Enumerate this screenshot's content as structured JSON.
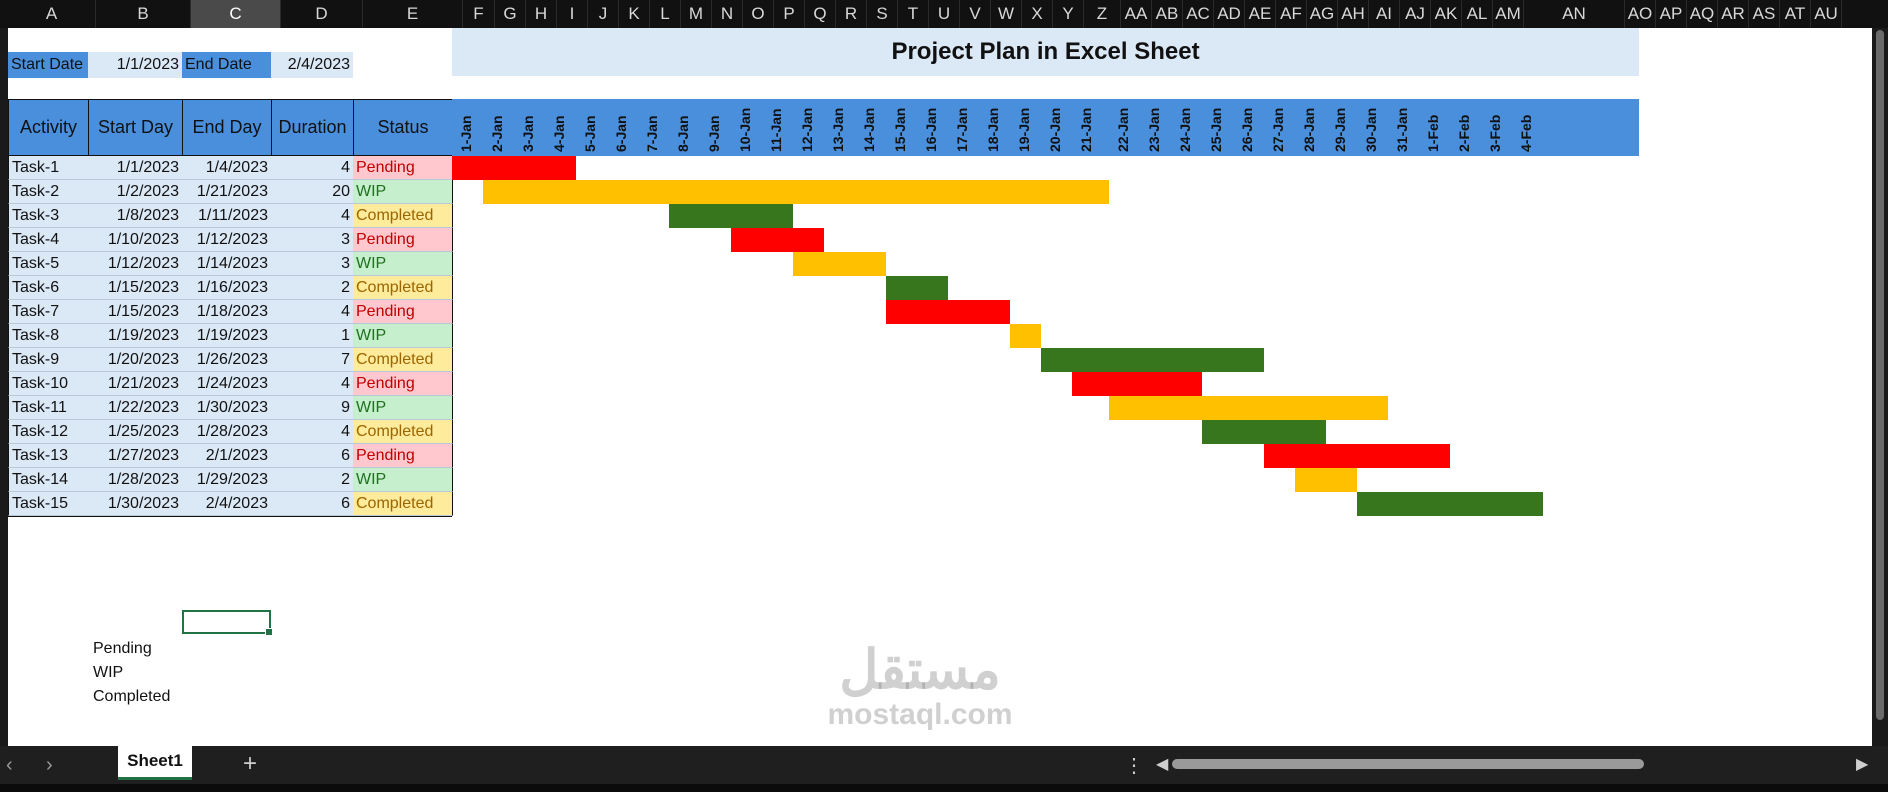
{
  "col_headers": [
    "A",
    "B",
    "C",
    "D",
    "E",
    "F",
    "G",
    "H",
    "I",
    "J",
    "K",
    "L",
    "M",
    "N",
    "O",
    "P",
    "Q",
    "R",
    "S",
    "T",
    "U",
    "V",
    "W",
    "X",
    "Y",
    "Z",
    "AA",
    "AB",
    "AC",
    "AD",
    "AE",
    "AF",
    "AG",
    "AH",
    "AI",
    "AJ",
    "AK",
    "AL",
    "AM",
    "AN",
    "AO",
    "AP",
    "AQ",
    "AR",
    "AS",
    "AT",
    "AU"
  ],
  "selected_col": "C",
  "title": "Project  Plan in Excel Sheet",
  "dates": {
    "start_label": "Start Date",
    "start_value": "1/1/2023",
    "end_label": "End Date",
    "end_value": "2/4/2023"
  },
  "table_headers": {
    "activity": "Activity",
    "start_day": "Start Day",
    "end_day": "End Day",
    "duration": "Duration",
    "status": "Status"
  },
  "timeline_days": [
    "1-Jan",
    "2-Jan",
    "3-Jan",
    "4-Jan",
    "5-Jan",
    "6-Jan",
    "7-Jan",
    "8-Jan",
    "9-Jan",
    "10-Jan",
    "11-Jan",
    "12-Jan",
    "13-Jan",
    "14-Jan",
    "15-Jan",
    "16-Jan",
    "17-Jan",
    "18-Jan",
    "19-Jan",
    "20-Jan",
    "21-Jan",
    "22-Jan",
    "23-Jan",
    "24-Jan",
    "25-Jan",
    "26-Jan",
    "27-Jan",
    "28-Jan",
    "29-Jan",
    "30-Jan",
    "31-Jan",
    "1-Feb",
    "2-Feb",
    "3-Feb",
    "4-Feb"
  ],
  "tasks": [
    {
      "activity": "Task-1",
      "start": "1/1/2023",
      "end": "1/4/2023",
      "duration": "4",
      "status": "Pending",
      "start_day": 1,
      "end_day": 4
    },
    {
      "activity": "Task-2",
      "start": "1/2/2023",
      "end": "1/21/2023",
      "duration": "20",
      "status": "WIP",
      "start_day": 2,
      "end_day": 21
    },
    {
      "activity": "Task-3",
      "start": "1/8/2023",
      "end": "1/11/2023",
      "duration": "4",
      "status": "Completed",
      "start_day": 8,
      "end_day": 11
    },
    {
      "activity": "Task-4",
      "start": "1/10/2023",
      "end": "1/12/2023",
      "duration": "3",
      "status": "Pending",
      "start_day": 10,
      "end_day": 12
    },
    {
      "activity": "Task-5",
      "start": "1/12/2023",
      "end": "1/14/2023",
      "duration": "3",
      "status": "WIP",
      "start_day": 12,
      "end_day": 14
    },
    {
      "activity": "Task-6",
      "start": "1/15/2023",
      "end": "1/16/2023",
      "duration": "2",
      "status": "Completed",
      "start_day": 15,
      "end_day": 16
    },
    {
      "activity": "Task-7",
      "start": "1/15/2023",
      "end": "1/18/2023",
      "duration": "4",
      "status": "Pending",
      "start_day": 15,
      "end_day": 18
    },
    {
      "activity": "Task-8",
      "start": "1/19/2023",
      "end": "1/19/2023",
      "duration": "1",
      "status": "WIP",
      "start_day": 19,
      "end_day": 19
    },
    {
      "activity": "Task-9",
      "start": "1/20/2023",
      "end": "1/26/2023",
      "duration": "7",
      "status": "Completed",
      "start_day": 20,
      "end_day": 26
    },
    {
      "activity": "Task-10",
      "start": "1/21/2023",
      "end": "1/24/2023",
      "duration": "4",
      "status": "Pending",
      "start_day": 21,
      "end_day": 24
    },
    {
      "activity": "Task-11",
      "start": "1/22/2023",
      "end": "1/30/2023",
      "duration": "9",
      "status": "WIP",
      "start_day": 22,
      "end_day": 30
    },
    {
      "activity": "Task-12",
      "start": "1/25/2023",
      "end": "1/28/2023",
      "duration": "4",
      "status": "Completed",
      "start_day": 25,
      "end_day": 28
    },
    {
      "activity": "Task-13",
      "start": "1/27/2023",
      "end": "2/1/2023",
      "duration": "6",
      "status": "Pending",
      "start_day": 27,
      "end_day": 32
    },
    {
      "activity": "Task-14",
      "start": "1/28/2023",
      "end": "1/29/2023",
      "duration": "2",
      "status": "WIP",
      "start_day": 28,
      "end_day": 29
    },
    {
      "activity": "Task-15",
      "start": "1/30/2023",
      "end": "2/4/2023",
      "duration": "6",
      "status": "Completed",
      "start_day": 30,
      "end_day": 35
    }
  ],
  "status_colors": {
    "Pending": "#ff0000",
    "WIP": "#ffc000",
    "Completed": "#38761d"
  },
  "legend": [
    "Pending",
    "WIP",
    "Completed"
  ],
  "sheet_tab": "Sheet1",
  "watermark": {
    "arabic": "مستقل",
    "latin": "mostaql.com"
  }
}
